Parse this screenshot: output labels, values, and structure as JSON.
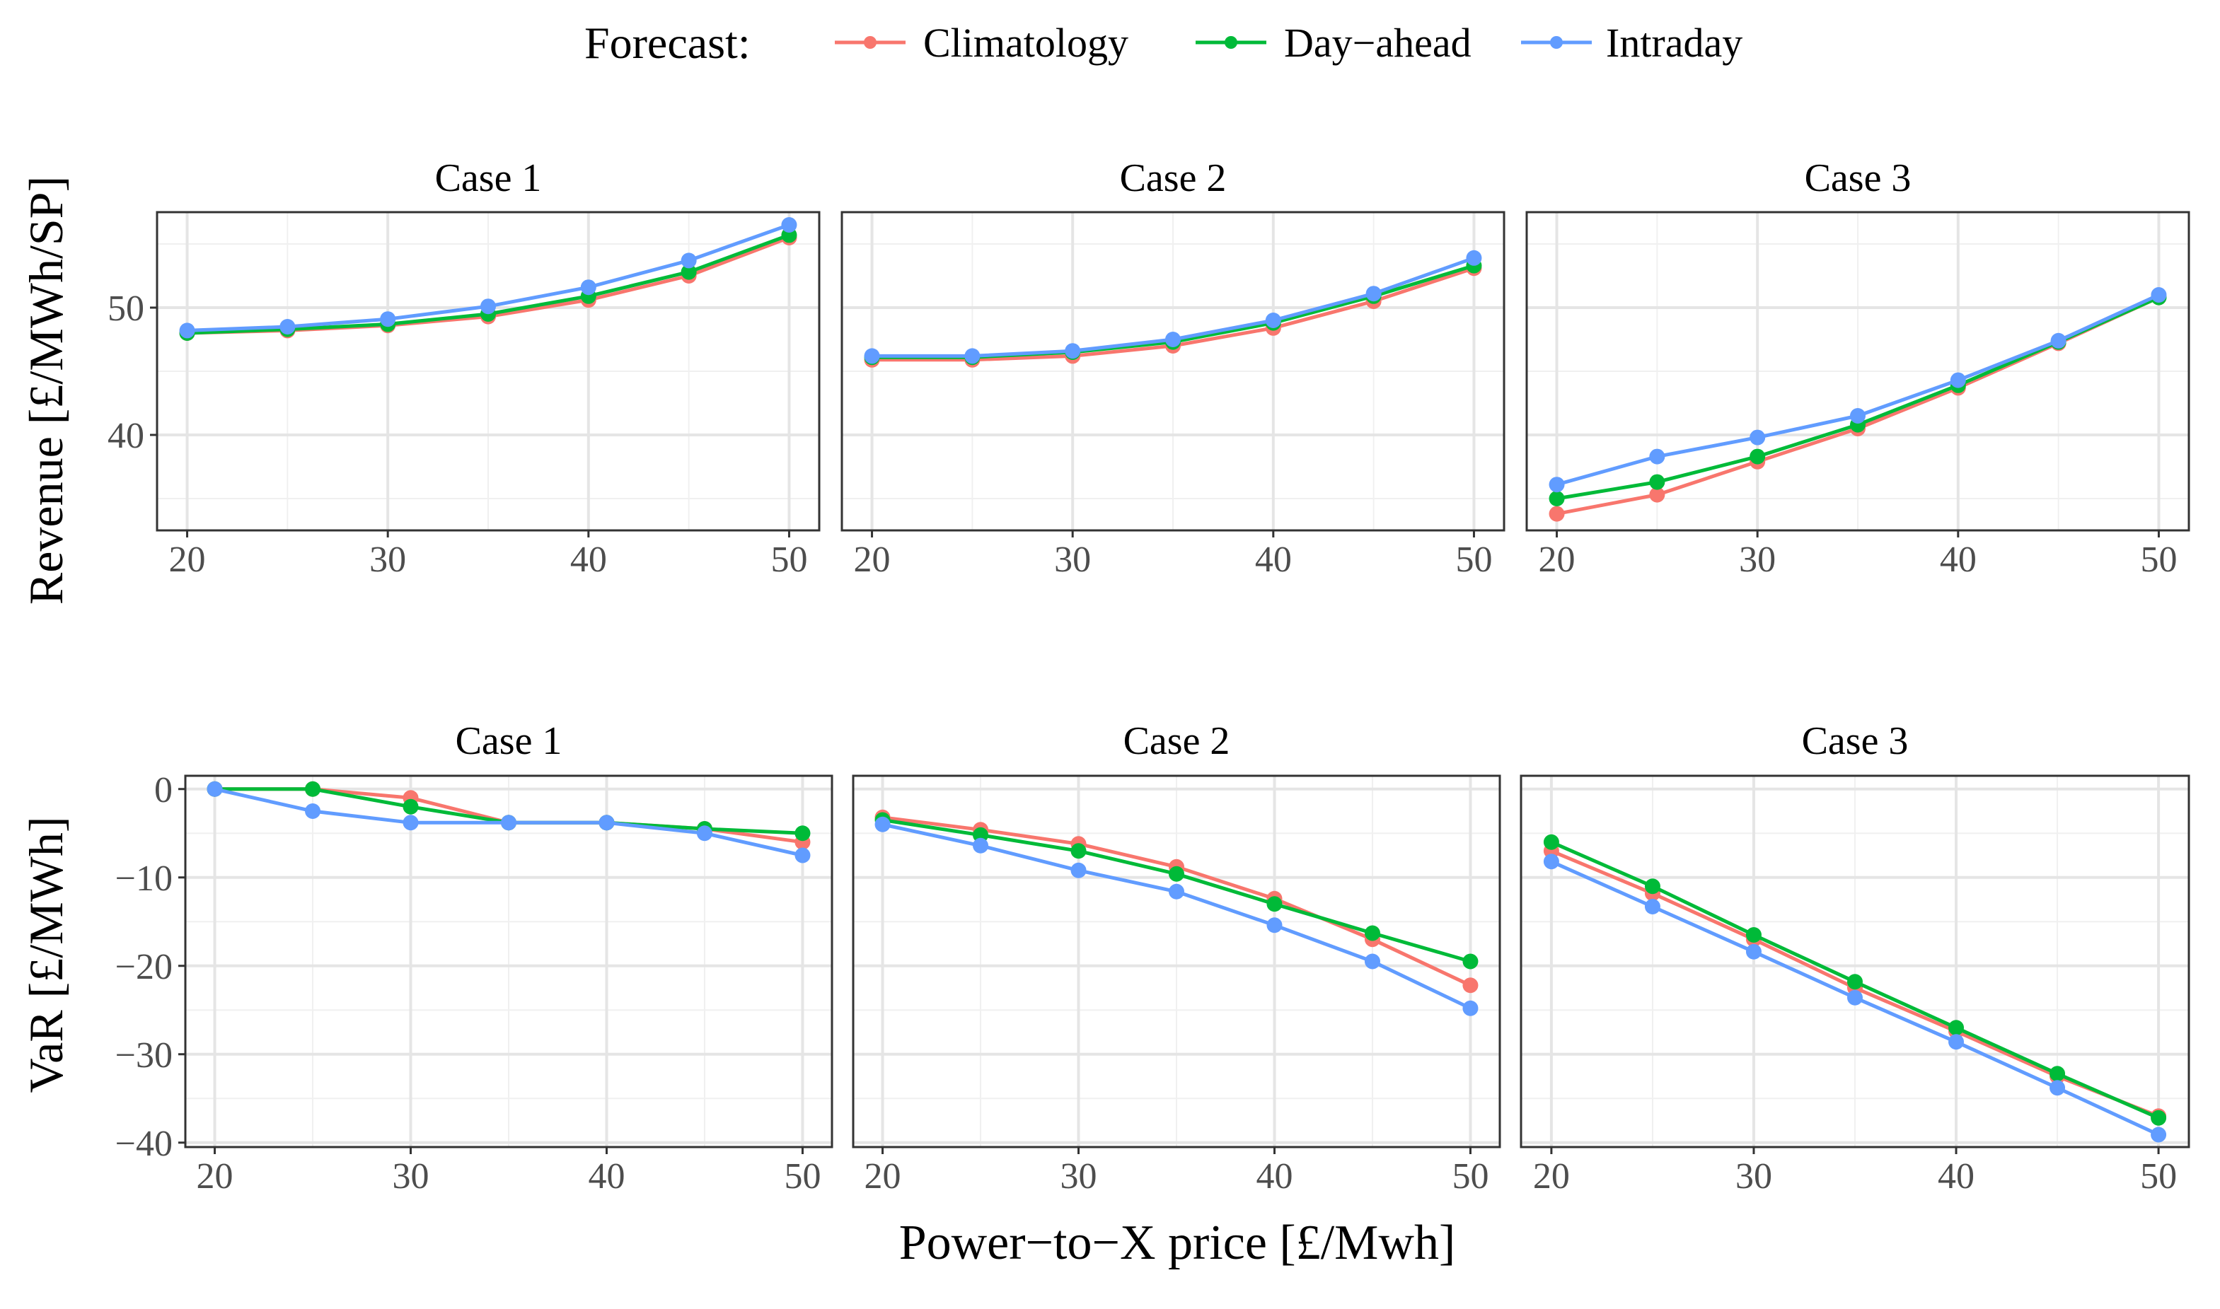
{
  "legend": {
    "title": "Forecast:",
    "entries": [
      {
        "name": "Climatology",
        "color": "#F8766D"
      },
      {
        "name": "Day−ahead",
        "color": "#00BA38"
      },
      {
        "name": "Intraday",
        "color": "#619CFF"
      }
    ]
  },
  "axis_labels": {
    "revenue_ylabel": "Revenue [£/MWh/SP]",
    "var_ylabel": "VaR [£/MWh]",
    "xlabel": "Power−to−X price [£/Mwh]"
  },
  "chart_data": [
    {
      "type": "line",
      "panel": "revenue-case-1",
      "title": "Case 1",
      "x": [
        20,
        25,
        30,
        35,
        40,
        45,
        50
      ],
      "xticks": [
        20,
        30,
        40,
        50
      ],
      "ylim": [
        32.5,
        57.5
      ],
      "yticks": [
        40,
        50
      ],
      "ylabel": "Revenue [£/MWh/SP]",
      "xlabel": "Power−to−X price [£/Mwh]",
      "series": [
        {
          "name": "Climatology",
          "values": [
            48.0,
            48.2,
            48.6,
            49.3,
            50.6,
            52.5,
            55.5
          ]
        },
        {
          "name": "Day−ahead",
          "values": [
            48.0,
            48.3,
            48.7,
            49.5,
            50.9,
            52.8,
            55.7
          ]
        },
        {
          "name": "Intraday",
          "values": [
            48.2,
            48.5,
            49.1,
            50.1,
            51.6,
            53.7,
            56.5
          ]
        }
      ]
    },
    {
      "type": "line",
      "panel": "revenue-case-2",
      "title": "Case 2",
      "x": [
        20,
        25,
        30,
        35,
        40,
        45,
        50
      ],
      "xticks": [
        20,
        30,
        40,
        50
      ],
      "ylim": [
        32.5,
        57.5
      ],
      "yticks": [
        40,
        50
      ],
      "series": [
        {
          "name": "Climatology",
          "values": [
            45.9,
            45.9,
            46.2,
            47.0,
            48.4,
            50.5,
            53.1
          ]
        },
        {
          "name": "Day−ahead",
          "values": [
            46.1,
            46.1,
            46.5,
            47.3,
            48.8,
            50.9,
            53.3
          ]
        },
        {
          "name": "Intraday",
          "values": [
            46.2,
            46.2,
            46.6,
            47.5,
            49.0,
            51.1,
            53.9
          ]
        }
      ]
    },
    {
      "type": "line",
      "panel": "revenue-case-3",
      "title": "Case 3",
      "x": [
        20,
        25,
        30,
        35,
        40,
        45,
        50
      ],
      "xticks": [
        20,
        30,
        40,
        50
      ],
      "ylim": [
        32.5,
        57.5
      ],
      "yticks": [
        40,
        50
      ],
      "series": [
        {
          "name": "Climatology",
          "values": [
            33.8,
            35.3,
            37.9,
            40.5,
            43.7,
            47.2,
            50.8
          ]
        },
        {
          "name": "Day−ahead",
          "values": [
            35.0,
            36.3,
            38.3,
            40.8,
            43.9,
            47.3,
            50.8
          ]
        },
        {
          "name": "Intraday",
          "values": [
            36.1,
            38.3,
            39.8,
            41.5,
            44.3,
            47.4,
            51.0
          ]
        }
      ]
    },
    {
      "type": "line",
      "panel": "var-case-1",
      "title": "Case 1",
      "x": [
        20,
        25,
        30,
        35,
        40,
        45,
        50
      ],
      "xticks": [
        20,
        30,
        40,
        50
      ],
      "ylim": [
        -40.5,
        1.5
      ],
      "yticks": [
        0,
        -10,
        -20,
        -30,
        -40
      ],
      "ylabel": "VaR [£/MWh]",
      "xlabel": "Power−to−X price [£/Mwh]",
      "series": [
        {
          "name": "Climatology",
          "values": [
            0.0,
            0.0,
            -1.0,
            -3.8,
            -3.8,
            -4.5,
            -6.0
          ]
        },
        {
          "name": "Day−ahead",
          "values": [
            0.0,
            0.0,
            -2.0,
            -3.8,
            -3.8,
            -4.5,
            -5.0
          ]
        },
        {
          "name": "Intraday",
          "values": [
            0.0,
            -2.5,
            -3.8,
            -3.8,
            -3.8,
            -5.0,
            -7.5
          ]
        }
      ]
    },
    {
      "type": "line",
      "panel": "var-case-2",
      "title": "Case 2",
      "x": [
        20,
        25,
        30,
        35,
        40,
        45,
        50
      ],
      "xticks": [
        20,
        30,
        40,
        50
      ],
      "ylim": [
        -40.5,
        1.5
      ],
      "yticks": [
        0,
        -10,
        -20,
        -30,
        -40
      ],
      "series": [
        {
          "name": "Climatology",
          "values": [
            -3.2,
            -4.6,
            -6.2,
            -8.8,
            -12.4,
            -17.0,
            -22.2
          ]
        },
        {
          "name": "Day−ahead",
          "values": [
            -3.5,
            -5.2,
            -7.0,
            -9.6,
            -13.0,
            -16.3,
            -19.5
          ]
        },
        {
          "name": "Intraday",
          "values": [
            -4.0,
            -6.4,
            -9.2,
            -11.6,
            -15.4,
            -19.5,
            -24.8
          ]
        }
      ]
    },
    {
      "type": "line",
      "panel": "var-case-3",
      "title": "Case 3",
      "x": [
        20,
        25,
        30,
        35,
        40,
        45,
        50
      ],
      "xticks": [
        20,
        30,
        40,
        50
      ],
      "ylim": [
        -40.5,
        1.5
      ],
      "yticks": [
        0,
        -10,
        -20,
        -30,
        -40
      ],
      "series": [
        {
          "name": "Climatology",
          "values": [
            -7.0,
            -11.8,
            -17.0,
            -22.5,
            -27.4,
            -32.5,
            -37.0
          ]
        },
        {
          "name": "Day−ahead",
          "values": [
            -6.0,
            -11.0,
            -16.5,
            -21.8,
            -27.0,
            -32.2,
            -37.2
          ]
        },
        {
          "name": "Intraday",
          "values": [
            -8.2,
            -13.3,
            -18.4,
            -23.6,
            -28.6,
            -33.8,
            -39.1
          ]
        }
      ]
    }
  ]
}
